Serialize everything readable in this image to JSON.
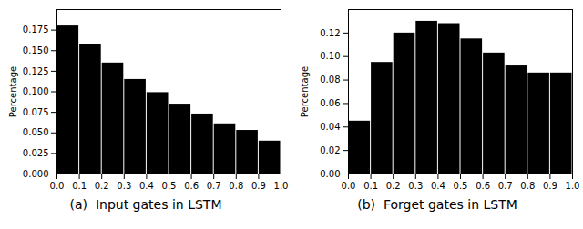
{
  "chart_data": [
    {
      "type": "histogram",
      "title": "(a)  Input gates in LSTM",
      "ylabel": "Percentage",
      "bins": [
        0.0,
        0.1,
        0.2,
        0.3,
        0.4,
        0.5,
        0.6,
        0.7,
        0.8,
        0.9,
        1.0
      ],
      "values": [
        0.18,
        0.158,
        0.135,
        0.115,
        0.099,
        0.085,
        0.073,
        0.061,
        0.053,
        0.04
      ],
      "xlim": [
        0.0,
        1.0
      ],
      "xticks": [
        {
          "value": 0.0,
          "label": "0.0"
        },
        0.1,
        0.2,
        0.3,
        0.4,
        0.5,
        0.6,
        0.7,
        0.8,
        0.9,
        {
          "value": 1.0,
          "label": "1.0"
        }
      ],
      "ylim": [
        0,
        0.2
      ],
      "yticks": [
        {
          "value": 0.0,
          "label": "0.000"
        },
        0.025,
        {
          "value": 0.05,
          "label": "0.050"
        },
        0.075,
        {
          "value": 0.1,
          "label": "0.100"
        },
        0.125,
        {
          "value": 0.15,
          "label": "0.150"
        },
        0.175
      ]
    },
    {
      "type": "histogram",
      "title": "(b)  Forget gates in LSTM",
      "ylabel": "Percentage",
      "bins": [
        0.0,
        0.1,
        0.2,
        0.3,
        0.4,
        0.5,
        0.6,
        0.7,
        0.8,
        0.9,
        1.0
      ],
      "values": [
        0.045,
        0.095,
        0.12,
        0.13,
        0.128,
        0.115,
        0.103,
        0.092,
        0.086,
        0.086
      ],
      "xlim": [
        0.0,
        1.0
      ],
      "xticks": [
        {
          "value": 0.0,
          "label": "0.0"
        },
        0.1,
        0.2,
        0.3,
        0.4,
        0.5,
        0.6,
        0.7,
        0.8,
        0.9,
        {
          "value": 1.0,
          "label": "1.0"
        }
      ],
      "ylim": [
        0,
        0.14
      ],
      "yticks": [
        {
          "value": 0.0,
          "label": "0.00"
        },
        0.02,
        0.04,
        0.06,
        0.08,
        {
          "value": 0.1,
          "label": "0.10"
        },
        0.12
      ]
    }
  ]
}
